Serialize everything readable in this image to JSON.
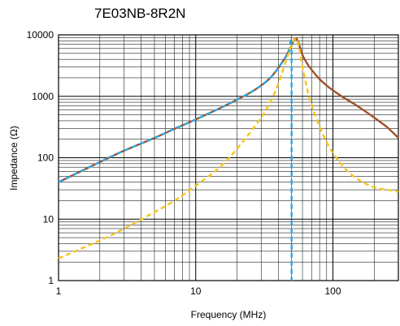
{
  "chart_data": {
    "type": "line",
    "title": "7E03NB-8R2N",
    "xlabel": "Frequency (MHz)",
    "ylabel": "Impedance (Ω)",
    "x_scale": "log",
    "y_scale": "log",
    "xlim": [
      1,
      300
    ],
    "ylim": [
      1,
      10000
    ],
    "x_ticks": [
      1,
      10,
      100
    ],
    "y_ticks": [
      1,
      10,
      100,
      1000,
      10000
    ],
    "x_tick_labels": [
      "1",
      "10",
      "100"
    ],
    "y_tick_labels": [
      "1",
      "10",
      "100",
      "1000",
      "10000"
    ],
    "grid": true,
    "series": [
      {
        "color": "#a0522d",
        "dash": "solid",
        "x": [
          1,
          2,
          3,
          5,
          7,
          10,
          15,
          20,
          25,
          30,
          35,
          40,
          45,
          50,
          53,
          56,
          60,
          65,
          70,
          80,
          90,
          100,
          120,
          150,
          200,
          250,
          300
        ],
        "y": [
          40,
          85,
          130,
          210,
          295,
          420,
          640,
          880,
          1150,
          1500,
          2000,
          2900,
          4300,
          6800,
          8800,
          7500,
          4700,
          3400,
          2700,
          1900,
          1500,
          1250,
          950,
          700,
          450,
          310,
          210
        ]
      },
      {
        "color": "#29a9e0",
        "dash": "dashed",
        "x": [
          1,
          2,
          3,
          5,
          7,
          10,
          15,
          20,
          25,
          30,
          35,
          40,
          45,
          48,
          50,
          50,
          50
        ],
        "y": [
          40,
          85,
          130,
          210,
          295,
          420,
          640,
          880,
          1150,
          1500,
          2000,
          2900,
          4300,
          5500,
          6500,
          100,
          1
        ]
      },
      {
        "color": "#f5c518",
        "dash": "dashed",
        "x": [
          1,
          2,
          3,
          5,
          7,
          10,
          15,
          20,
          25,
          30,
          35,
          40,
          45,
          50,
          53,
          56,
          60,
          65,
          70,
          80,
          90,
          100,
          120,
          150,
          200,
          250,
          300
        ],
        "y": [
          2.3,
          4.5,
          7,
          13,
          20,
          35,
          70,
          140,
          260,
          450,
          800,
          1600,
          3500,
          6800,
          8800,
          7000,
          3000,
          1300,
          720,
          320,
          180,
          120,
          70,
          45,
          33,
          30,
          28
        ]
      }
    ]
  }
}
